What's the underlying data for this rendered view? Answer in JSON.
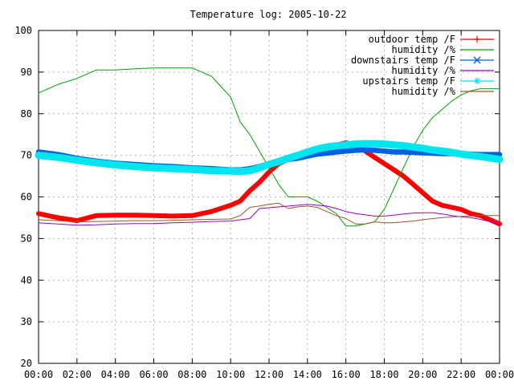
{
  "chart_data": {
    "type": "line",
    "title": "Temperature log: 2005-10-22",
    "xlabel": "",
    "ylabel": "",
    "xlim": [
      0,
      24
    ],
    "ylim": [
      20,
      100
    ],
    "grid": true,
    "legend_position": "top-right",
    "x_tick_labels": [
      "00:00",
      "02:00",
      "04:00",
      "06:00",
      "08:00",
      "10:00",
      "12:00",
      "14:00",
      "16:00",
      "18:00",
      "20:00",
      "22:00",
      "00:00"
    ],
    "y_tick_labels": [
      "20",
      "30",
      "40",
      "50",
      "60",
      "70",
      "80",
      "90",
      "100"
    ],
    "x_hours": [
      0,
      1,
      2,
      3,
      4,
      5,
      6,
      7,
      8,
      9,
      10,
      10.5,
      11,
      11.5,
      12,
      12.5,
      13,
      13.5,
      14,
      14.5,
      15,
      15.5,
      16,
      16.5,
      17,
      17.5,
      18,
      18.5,
      19,
      19.5,
      20,
      20.5,
      21,
      21.5,
      22,
      22.5,
      23,
      24
    ],
    "series": [
      {
        "name": "outdoor temp /F",
        "color": "#ff0000",
        "marker": "plus",
        "values": [
          56,
          55,
          54.3,
          55.5,
          55.6,
          55.6,
          55.5,
          55.4,
          55.5,
          56.5,
          58,
          59,
          61.5,
          63.5,
          66,
          68,
          69,
          69.5,
          70.5,
          71.5,
          72,
          72.5,
          73,
          72.5,
          71,
          69.5,
          68,
          66.5,
          65,
          63,
          61,
          59,
          58,
          57.5,
          57,
          56,
          55.5,
          53.5
        ]
      },
      {
        "name": "humidity /%",
        "color": "#00a000",
        "marker": "none",
        "values": [
          85,
          87,
          88.5,
          90.5,
          90.5,
          90.8,
          91,
          91,
          91,
          89,
          84,
          78,
          75,
          71,
          67,
          63,
          60,
          60,
          60,
          59,
          57.5,
          56,
          53,
          53,
          53.5,
          54,
          57,
          62,
          67,
          72,
          76,
          79,
          81,
          83,
          84.5,
          85.5,
          86,
          86
        ]
      },
      {
        "name": "downstairs temp /F",
        "color": "#0060e0",
        "marker": "x",
        "values": [
          70.8,
          70.2,
          69.3,
          68.6,
          68.1,
          67.8,
          67.5,
          67.3,
          67,
          66.8,
          66.5,
          66.5,
          66.8,
          67.3,
          68,
          68.5,
          69,
          69.3,
          69.8,
          70.3,
          70.5,
          70.8,
          71,
          71.2,
          71.3,
          71.2,
          71,
          70.8,
          70.8,
          70.7,
          70.6,
          70.5,
          70.4,
          70.4,
          70.3,
          70.3,
          70.2,
          70.2
        ]
      },
      {
        "name": "humidity /%",
        "color": "#9400d3",
        "marker": "none",
        "values": [
          53.8,
          53.5,
          53.2,
          53.3,
          53.5,
          53.6,
          53.6,
          53.8,
          53.9,
          54.1,
          54.2,
          54.5,
          54.8,
          57.2,
          57.4,
          57.6,
          57.8,
          58,
          58.2,
          58,
          57.8,
          57.2,
          56.5,
          56,
          55.7,
          55.4,
          55.4,
          55.6,
          55.9,
          56.1,
          56.2,
          56.2,
          55.9,
          55.5,
          55.2,
          55,
          54.6,
          53.5
        ]
      },
      {
        "name": "upstairs temp /F",
        "color": "#00e5ee",
        "marker": "star",
        "values": [
          70,
          69.5,
          68.8,
          68.2,
          67.7,
          67.3,
          67,
          66.8,
          66.6,
          66.3,
          66.2,
          66.1,
          66.3,
          67,
          67.8,
          68.5,
          69.3,
          70,
          70.8,
          71.5,
          72,
          72.3,
          72.5,
          72.7,
          72.8,
          72.8,
          72.7,
          72.5,
          72.3,
          72,
          71.7,
          71.3,
          71,
          70.7,
          70.3,
          70,
          69.7,
          69
        ]
      },
      {
        "name": "humidity /%",
        "color": "#a0522d",
        "marker": "none",
        "values": [
          54.5,
          54.3,
          54,
          54.1,
          54.2,
          54.3,
          54.3,
          54.4,
          54.5,
          54.6,
          54.7,
          55.5,
          57.5,
          57.8,
          58.2,
          58.5,
          57.2,
          57.6,
          57.8,
          57.5,
          56.5,
          55.5,
          54.8,
          53.5,
          53.5,
          54,
          53.8,
          53.8,
          54,
          54.2,
          54.5,
          54.8,
          55,
          55.2,
          55.3,
          55.4,
          55.5,
          55.5
        ]
      }
    ]
  }
}
